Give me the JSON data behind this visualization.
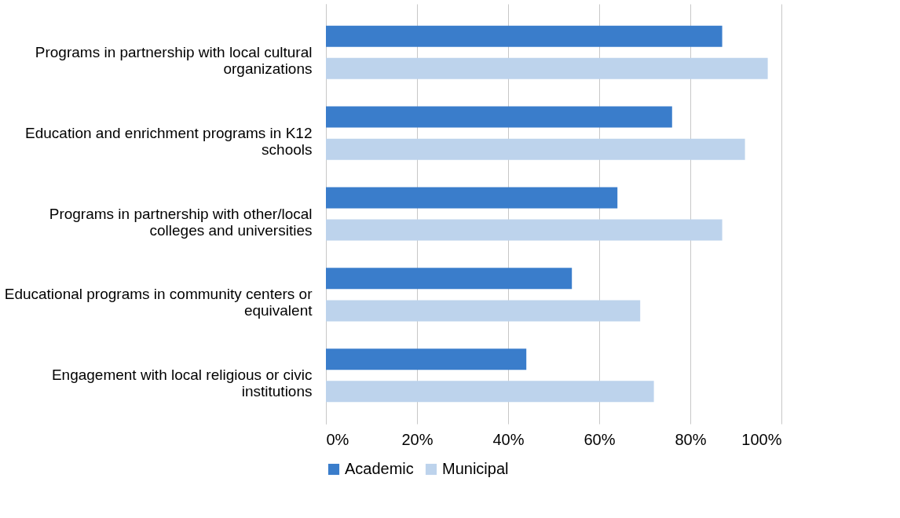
{
  "chart_data": {
    "type": "bar",
    "orientation": "horizontal",
    "categories": [
      "Programs in partnership with local cultural organizations",
      "Education and enrichment programs in K12 schools",
      "Programs in partnership with other/local colleges and universities",
      "Educational programs in community centers or equivalent",
      "Engagement with local religious or civic institutions"
    ],
    "series": [
      {
        "name": "Academic",
        "color": "#3a7dcb",
        "values": [
          87,
          76,
          64,
          54,
          44
        ]
      },
      {
        "name": "Municipal",
        "color": "#bdd3ec",
        "values": [
          97,
          92,
          87,
          69,
          72
        ]
      }
    ],
    "xlim": [
      0,
      100
    ],
    "xticks": [
      {
        "value": 0,
        "label": "0%"
      },
      {
        "value": 20,
        "label": "20%"
      },
      {
        "value": 40,
        "label": "40%"
      },
      {
        "value": 60,
        "label": "60%"
      },
      {
        "value": 80,
        "label": "80%"
      },
      {
        "value": 100,
        "label": "100%"
      }
    ],
    "grid": "x",
    "legend": "bottom"
  }
}
